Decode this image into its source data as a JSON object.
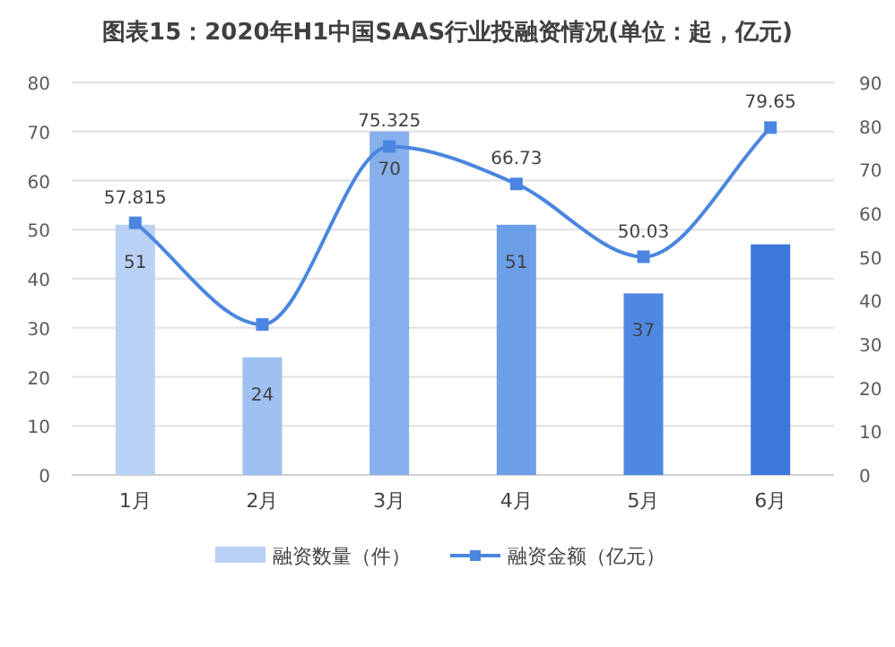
{
  "chart_data": {
    "type": "bar",
    "title": "图表15：2020年H1中国SAAS行业投融资情况(单位：起，亿元)",
    "categories": [
      "1月",
      "2月",
      "3月",
      "4月",
      "5月",
      "6月"
    ],
    "series": [
      {
        "name": "融资数量（件）",
        "color": "#b9d1f4",
        "colors": [
          "#b9d1f4",
          "#9fc0f0",
          "#86afec",
          "#6d9ee8",
          "#4f88e2",
          "#3b77dc"
        ],
        "values": [
          51,
          24,
          70,
          51,
          37,
          47
        ],
        "value_labels": [
          "51",
          "24",
          "70",
          "51",
          "37",
          null
        ]
      },
      {
        "name": "融资金额（亿元）",
        "type": "line",
        "axis": "y2",
        "color": "#4a86e0",
        "values": [
          57.815,
          34.5,
          75.325,
          66.73,
          50.03,
          79.65
        ],
        "value_labels": [
          "57.815",
          null,
          "75.325",
          "66.73",
          "50.03",
          "79.65"
        ]
      }
    ],
    "ylim": [
      0,
      80
    ],
    "yticks": [
      0,
      10,
      20,
      30,
      40,
      50,
      60,
      70,
      80
    ],
    "y2lim": [
      0,
      90
    ],
    "y2ticks": [
      0,
      10,
      20,
      30,
      40,
      50,
      60,
      70,
      80,
      90
    ],
    "grid": "y",
    "legend": "bottom",
    "marker": "square"
  }
}
